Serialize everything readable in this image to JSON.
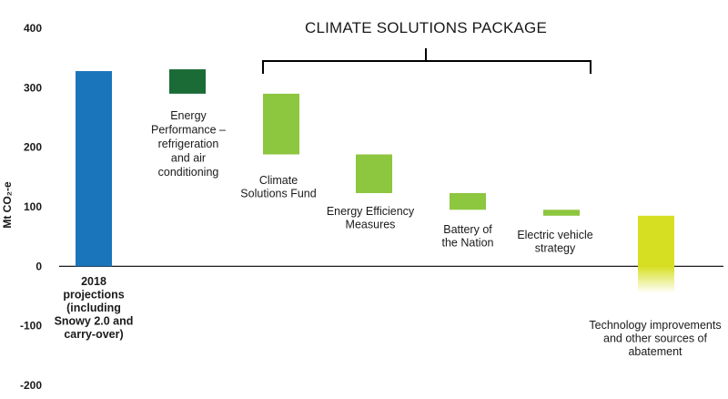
{
  "chart_data": {
    "type": "bar",
    "subtype": "waterfall",
    "ylabel": "Mt CO₂-e",
    "ylim": [
      -200,
      400
    ],
    "yticks": [
      "400",
      "300",
      "200",
      "100",
      "0",
      "-100",
      "-200"
    ],
    "grid": false,
    "package_title": "CLIMATE SOLUTIONS PACKAGE",
    "package_bracket": {
      "from_category": 2,
      "to_category": 5
    },
    "categories": [
      {
        "label": [
          "2018",
          "projections",
          "(including",
          "Snowy 2.0 and",
          "carry-over)"
        ],
        "bold": true,
        "bottom": 0,
        "top": 328,
        "color": "#1b75bb",
        "fade": false
      },
      {
        "label": [
          "Energy",
          "Performance –",
          "refrigeration",
          "and air",
          "conditioning"
        ],
        "bold": false,
        "bottom": 290,
        "top": 331,
        "color": "#1a6b35",
        "fade": false
      },
      {
        "label": [
          "Climate",
          "Solutions Fund"
        ],
        "bold": false,
        "bottom": 188,
        "top": 290,
        "color": "#8dc63f",
        "fade": false
      },
      {
        "label": [
          "Energy Efficiency",
          "Measures"
        ],
        "bold": false,
        "bottom": 123,
        "top": 188,
        "color": "#8dc63f",
        "fade": false
      },
      {
        "label": [
          "Battery of",
          "the Nation"
        ],
        "bold": false,
        "bottom": 95,
        "top": 123,
        "color": "#8dc63f",
        "fade": false
      },
      {
        "label": [
          "Electric vehicle",
          "strategy"
        ],
        "bold": false,
        "bottom": 85,
        "top": 95,
        "color": "#8dc63f",
        "fade": false
      },
      {
        "label": [
          "Technology improvements",
          "and other sources of",
          "abatement"
        ],
        "bold": false,
        "bottom": -45,
        "top": 85,
        "color": "#d7df23",
        "fade": true
      }
    ]
  }
}
